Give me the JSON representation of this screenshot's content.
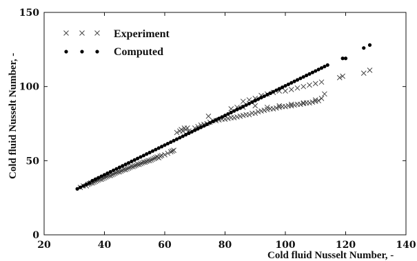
{
  "chart_data": {
    "type": "scatter",
    "title": "",
    "xlabel": "Cold fluid Nusselt Number, -",
    "ylabel": "Cold fluid Nusselt Number, -",
    "xlim": [
      20,
      140
    ],
    "ylim": [
      0,
      150
    ],
    "x_ticks": [
      "20",
      "40",
      "60",
      "80",
      "100",
      "120",
      "140"
    ],
    "y_ticks": [
      "0",
      "50",
      "100",
      "150"
    ],
    "legend_position": "top-left",
    "grid": false,
    "series": [
      {
        "name": "Experiment",
        "marker": "x",
        "color": "#444444",
        "points": [
          [
            32,
            32
          ],
          [
            33,
            33
          ],
          [
            34,
            33
          ],
          [
            34.5,
            34
          ],
          [
            35,
            34.5
          ],
          [
            35.5,
            35
          ],
          [
            36,
            35
          ],
          [
            36.5,
            35.5
          ],
          [
            37,
            36
          ],
          [
            37.5,
            36.5
          ],
          [
            38,
            37
          ],
          [
            38.5,
            37.5
          ],
          [
            39,
            37.5
          ],
          [
            39.5,
            38
          ],
          [
            40,
            38.5
          ],
          [
            40.5,
            39
          ],
          [
            41,
            39.5
          ],
          [
            41.5,
            40
          ],
          [
            42,
            40
          ],
          [
            42.5,
            40.5
          ],
          [
            43,
            41
          ],
          [
            43.5,
            41.5
          ],
          [
            44,
            42
          ],
          [
            44.5,
            42.5
          ],
          [
            45,
            42.5
          ],
          [
            45.5,
            43
          ],
          [
            46,
            43.5
          ],
          [
            46.5,
            44
          ],
          [
            47,
            44
          ],
          [
            47.5,
            44.5
          ],
          [
            48,
            45
          ],
          [
            48.5,
            45.5
          ],
          [
            49,
            46
          ],
          [
            49.5,
            46
          ],
          [
            50,
            46.5
          ],
          [
            50.5,
            47
          ],
          [
            51,
            47.5
          ],
          [
            51.5,
            47.5
          ],
          [
            52,
            48
          ],
          [
            52.5,
            48.5
          ],
          [
            53,
            49
          ],
          [
            53.5,
            49
          ],
          [
            54,
            49.5
          ],
          [
            54.5,
            50
          ],
          [
            55,
            50
          ],
          [
            55.5,
            50.5
          ],
          [
            56,
            51
          ],
          [
            56.5,
            51.5
          ],
          [
            57,
            52
          ],
          [
            57.5,
            52.5
          ],
          [
            58,
            52
          ],
          [
            58.5,
            53
          ],
          [
            59,
            53.5
          ],
          [
            60,
            54
          ],
          [
            61,
            55
          ],
          [
            62,
            56
          ],
          [
            62.5,
            56.5
          ],
          [
            63,
            57
          ],
          [
            64,
            69
          ],
          [
            65,
            70
          ],
          [
            65.5,
            71
          ],
          [
            66,
            70
          ],
          [
            66.5,
            72
          ],
          [
            67,
            71
          ],
          [
            67.5,
            72
          ],
          [
            68,
            70
          ],
          [
            70,
            72
          ],
          [
            71,
            73
          ],
          [
            72,
            74
          ],
          [
            73,
            74.5
          ],
          [
            74,
            75
          ],
          [
            74.5,
            80
          ],
          [
            75,
            76
          ],
          [
            76,
            77
          ],
          [
            77,
            77
          ],
          [
            78,
            77.5
          ],
          [
            79,
            78
          ],
          [
            80,
            78
          ],
          [
            81,
            78.5
          ],
          [
            82,
            79
          ],
          [
            83,
            79
          ],
          [
            84,
            79.5
          ],
          [
            85,
            80
          ],
          [
            86,
            80.5
          ],
          [
            87,
            81
          ],
          [
            88,
            81
          ],
          [
            89,
            82
          ],
          [
            90,
            82
          ],
          [
            91,
            83
          ],
          [
            92,
            83.5
          ],
          [
            93,
            84
          ],
          [
            94,
            84.5
          ],
          [
            95,
            85
          ],
          [
            96,
            85
          ],
          [
            97,
            85.5
          ],
          [
            98,
            86
          ],
          [
            99,
            86.5
          ],
          [
            100,
            86.5
          ],
          [
            101,
            87
          ],
          [
            102,
            87
          ],
          [
            103,
            87.5
          ],
          [
            104,
            88
          ],
          [
            105,
            88
          ],
          [
            106,
            88.5
          ],
          [
            107,
            89
          ],
          [
            108,
            89
          ],
          [
            109,
            89.5
          ],
          [
            110,
            90
          ],
          [
            111,
            90.5
          ],
          [
            112,
            92
          ],
          [
            113,
            95
          ],
          [
            82,
            85
          ],
          [
            84,
            86
          ],
          [
            86,
            90
          ],
          [
            88,
            91
          ],
          [
            90,
            92
          ],
          [
            92,
            94
          ],
          [
            94,
            95
          ],
          [
            96,
            96
          ],
          [
            98,
            97
          ],
          [
            100,
            97
          ],
          [
            102,
            98
          ],
          [
            104,
            99
          ],
          [
            106,
            100
          ],
          [
            108,
            101
          ],
          [
            110,
            102
          ],
          [
            112,
            103
          ],
          [
            86,
            86
          ],
          [
            90,
            87
          ],
          [
            94,
            86
          ],
          [
            98,
            87
          ],
          [
            102,
            88
          ],
          [
            106,
            89
          ],
          [
            110,
            91
          ],
          [
            118,
            106
          ],
          [
            119,
            107
          ],
          [
            126,
            109
          ],
          [
            128,
            111
          ]
        ]
      },
      {
        "name": "Computed",
        "marker": "dot",
        "color": "#000000",
        "points": [
          [
            31,
            31
          ],
          [
            32,
            32
          ],
          [
            33,
            33
          ],
          [
            34,
            34
          ],
          [
            35,
            35
          ],
          [
            36,
            36.5
          ],
          [
            37,
            37.5
          ],
          [
            38,
            38.5
          ],
          [
            39,
            39.5
          ],
          [
            40,
            40.5
          ],
          [
            41,
            41.5
          ],
          [
            42,
            42.5
          ],
          [
            43,
            43.5
          ],
          [
            44,
            44.5
          ],
          [
            45,
            45.5
          ],
          [
            46,
            46.5
          ],
          [
            47,
            47.5
          ],
          [
            48,
            48.5
          ],
          [
            49,
            49.5
          ],
          [
            50,
            50.5
          ],
          [
            51,
            51.5
          ],
          [
            52,
            52.5
          ],
          [
            53,
            53.5
          ],
          [
            54,
            54.5
          ],
          [
            55,
            55.5
          ],
          [
            56,
            56.5
          ],
          [
            57,
            57.5
          ],
          [
            58,
            58.5
          ],
          [
            59,
            59.5
          ],
          [
            60,
            60.5
          ],
          [
            61,
            61.5
          ],
          [
            62,
            62.5
          ],
          [
            63,
            63.5
          ],
          [
            64,
            64.5
          ],
          [
            65,
            65.5
          ],
          [
            66,
            66.5
          ],
          [
            67,
            67.5
          ],
          [
            68,
            68.5
          ],
          [
            69,
            69.5
          ],
          [
            70,
            70.5
          ],
          [
            71,
            71.5
          ],
          [
            72,
            72.5
          ],
          [
            73,
            73.5
          ],
          [
            74,
            74.5
          ],
          [
            75,
            75.5
          ],
          [
            76,
            76.5
          ],
          [
            77,
            77.5
          ],
          [
            78,
            78.5
          ],
          [
            79,
            79.5
          ],
          [
            80,
            80.5
          ],
          [
            81,
            81.5
          ],
          [
            82,
            82.5
          ],
          [
            83,
            83.5
          ],
          [
            84,
            84.5
          ],
          [
            85,
            85.5
          ],
          [
            86,
            86.5
          ],
          [
            87,
            87.5
          ],
          [
            88,
            88.5
          ],
          [
            89,
            89.5
          ],
          [
            90,
            90.5
          ],
          [
            91,
            91.5
          ],
          [
            92,
            92.5
          ],
          [
            93,
            93.5
          ],
          [
            94,
            94.5
          ],
          [
            95,
            95.5
          ],
          [
            96,
            96.5
          ],
          [
            97,
            97.5
          ],
          [
            98,
            98.5
          ],
          [
            99,
            99.5
          ],
          [
            100,
            100.5
          ],
          [
            101,
            101.5
          ],
          [
            102,
            102.5
          ],
          [
            103,
            103.5
          ],
          [
            104,
            104.5
          ],
          [
            105,
            105.5
          ],
          [
            106,
            106.5
          ],
          [
            107,
            107.5
          ],
          [
            108,
            108.5
          ],
          [
            109,
            109.5
          ],
          [
            110,
            110.5
          ],
          [
            111,
            111.5
          ],
          [
            112,
            112.5
          ],
          [
            113,
            113.5
          ],
          [
            114,
            114.5
          ],
          [
            119,
            119
          ],
          [
            120,
            119
          ],
          [
            126,
            126
          ],
          [
            128,
            128
          ]
        ]
      }
    ]
  }
}
